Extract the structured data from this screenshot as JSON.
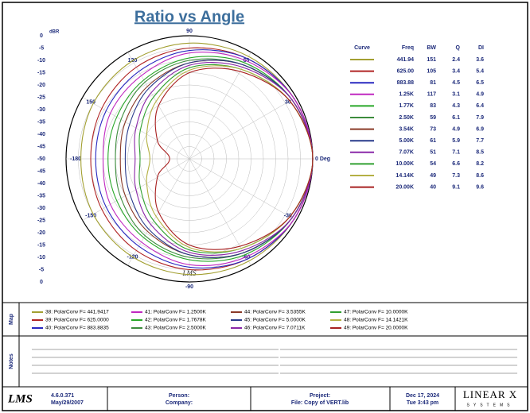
{
  "chart_data": {
    "type": "polar",
    "title": "Ratio vs Angle",
    "radial_label": "dBR",
    "watermark": "LMS",
    "rlim": [
      -50,
      0
    ],
    "rticks": [
      0,
      -5,
      -10,
      -15,
      -20,
      -25,
      -30,
      -35,
      -40,
      -45,
      -50
    ],
    "angle_ticks": [
      {
        "value": 0,
        "label": "0 Deg"
      },
      30,
      60,
      90,
      120,
      150,
      {
        "value": 180,
        "label": "-180"
      },
      -150,
      -120,
      -90,
      -60,
      -30
    ],
    "angles": [
      0,
      30,
      60,
      90,
      120,
      150,
      180,
      210,
      240,
      270,
      300,
      330
    ],
    "table_headers": [
      "Curve",
      "Freq",
      "BW",
      "Q",
      "DI"
    ],
    "series": [
      {
        "name": "38: PolarConv F= 441.9417",
        "color": "#a3a032",
        "freq": "441.94",
        "bw": "151",
        "q": "2.4",
        "di": "3.6",
        "values": [
          0,
          -1,
          -2,
          -3,
          -4,
          -5,
          -6,
          -5,
          -4,
          -3,
          -2,
          -1
        ]
      },
      {
        "name": "39: PolarConv F= 625.0000",
        "color": "#b02424",
        "freq": "625.00",
        "bw": "105",
        "q": "3.4",
        "di": "5.4",
        "values": [
          0,
          -1,
          -3,
          -5,
          -7,
          -9,
          -10,
          -9,
          -7,
          -5,
          -3,
          -1
        ]
      },
      {
        "name": "40: PolarConv F= 883.8835",
        "color": "#2828c0",
        "freq": "883.88",
        "bw": "81",
        "q": "4.5",
        "di": "6.5",
        "values": [
          0,
          -1,
          -3,
          -6,
          -9,
          -11,
          -12,
          -11,
          -9,
          -6,
          -3,
          -1
        ]
      },
      {
        "name": "41: PolarConv F= 1.2500K",
        "color": "#c028c0",
        "freq": "1.25K",
        "bw": "117",
        "q": "3.1",
        "di": "4.9",
        "values": [
          0,
          -1,
          -4,
          -7,
          -11,
          -13,
          -15,
          -13,
          -11,
          -7,
          -4,
          -1
        ]
      },
      {
        "name": "42: PolarConv F= 1.7678K",
        "color": "#28a828",
        "freq": "1.77K",
        "bw": "83",
        "q": "4.3",
        "di": "6.4",
        "values": [
          0,
          -2,
          -5,
          -9,
          -13,
          -16,
          -17,
          -16,
          -13,
          -9,
          -5,
          -2
        ]
      },
      {
        "name": "43: PolarConv F= 2.5000K",
        "color": "#3c8c3c",
        "freq": "2.50K",
        "bw": "59",
        "q": "6.1",
        "di": "7.9",
        "values": [
          0,
          -2,
          -6,
          -10,
          -14,
          -18,
          -20,
          -18,
          -14,
          -10,
          -6,
          -2
        ]
      },
      {
        "name": "44: PolarConv F= 3.5355K",
        "color": "#8a3a28",
        "freq": "3.54K",
        "bw": "73",
        "q": "4.9",
        "di": "6.9",
        "values": [
          0,
          -2,
          -6,
          -11,
          -16,
          -20,
          -22,
          -20,
          -16,
          -11,
          -6,
          -2
        ]
      },
      {
        "name": "45: PolarConv F= 5.0000K",
        "color": "#283a8a",
        "freq": "5.00K",
        "bw": "61",
        "q": "5.9",
        "di": "7.7",
        "values": [
          0,
          -2,
          -6,
          -11,
          -17,
          -22,
          -24,
          -22,
          -17,
          -11,
          -6,
          -2
        ]
      },
      {
        "name": "46: PolarConv F= 7.0711K",
        "color": "#8a28a8",
        "freq": "7.07K",
        "bw": "51",
        "q": "7.1",
        "di": "8.5",
        "values": [
          0,
          -2,
          -7,
          -12,
          -19,
          -25,
          -28,
          -25,
          -19,
          -12,
          -7,
          -2
        ]
      },
      {
        "name": "47: PolarConv F= 10.0000K",
        "color": "#30a030",
        "freq": "10.00K",
        "bw": "54",
        "q": "6.6",
        "di": "8.2",
        "values": [
          0,
          -3,
          -8,
          -13,
          -21,
          -27,
          -30,
          -27,
          -21,
          -13,
          -8,
          -3
        ]
      },
      {
        "name": "48: PolarConv F= 14.1421K",
        "color": "#b4b044",
        "freq": "14.14K",
        "bw": "49",
        "q": "7.3",
        "di": "8.6",
        "values": [
          0,
          -3,
          -8,
          -14,
          -23,
          -30,
          -34,
          -30,
          -23,
          -14,
          -8,
          -3
        ]
      },
      {
        "name": "49: PolarConv F= 20.0000K",
        "color": "#a82020",
        "freq": "20.00K",
        "bw": "40",
        "q": "9.1",
        "di": "9.6",
        "values": [
          0,
          -3,
          -9,
          -15,
          -25,
          -35,
          -42,
          -35,
          -25,
          -15,
          -9,
          -3
        ]
      }
    ]
  },
  "map_label": "Map",
  "notes_label": "Notes",
  "footer": {
    "logo": "LMS",
    "version": "4.6.0.371",
    "version_date": "May/29/2007",
    "person": "Person:",
    "company": "Company:",
    "project": "Project:",
    "file": "File: Copy of VERT.lib",
    "date": "Dec 17, 2024",
    "time": "Tue 3:43 pm",
    "brand": "LINEAR X",
    "brand_sub": "SYSTEMS"
  }
}
